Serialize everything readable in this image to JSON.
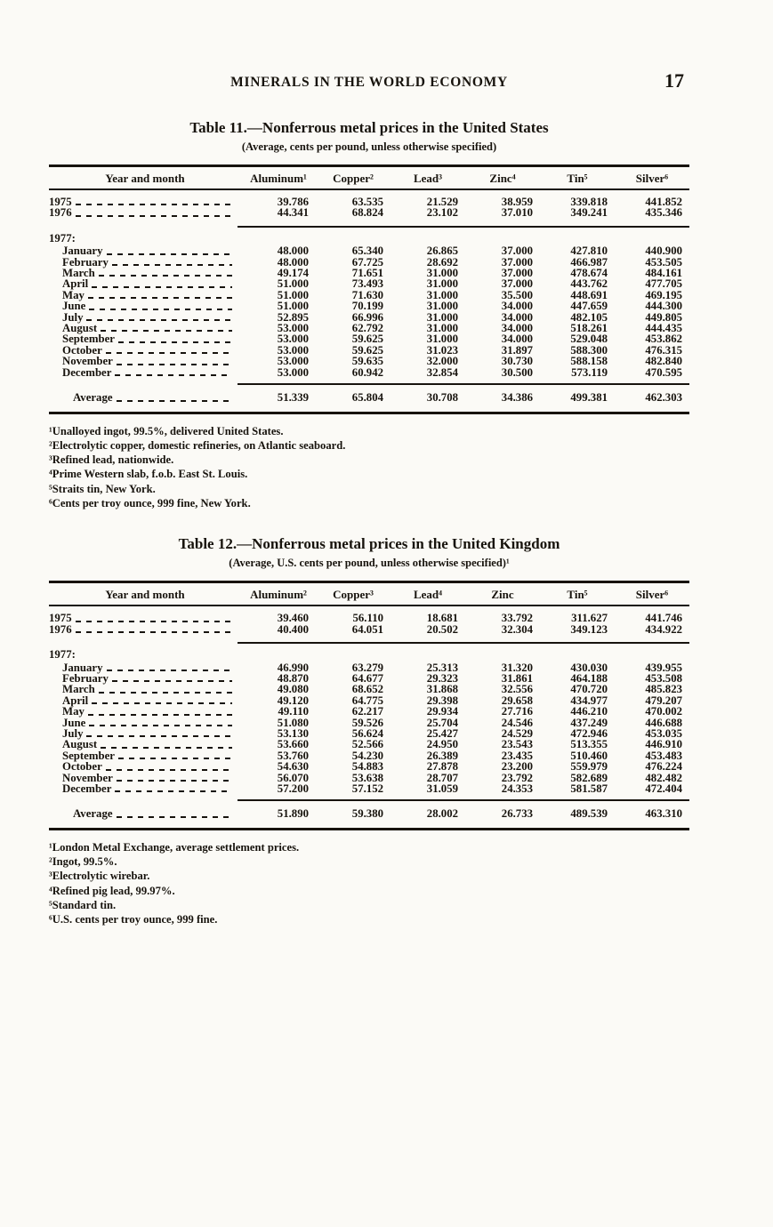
{
  "page": {
    "header_title": "MINERALS IN THE WORLD ECONOMY",
    "page_number": "17"
  },
  "tables": [
    {
      "title": "Table 11.—Nonferrous metal prices in the United States",
      "subtitle": "(Average, cents per pound, unless otherwise specified)",
      "columns": [
        "Year and month",
        "Aluminum¹",
        "Copper²",
        "Lead³",
        "Zinc⁴",
        "Tin⁵",
        "Silver⁶"
      ],
      "year_rows": [
        {
          "label": "1975",
          "values": [
            "39.786",
            "63.535",
            "21.529",
            "38.959",
            "339.818",
            "441.852"
          ]
        },
        {
          "label": "1976",
          "values": [
            "44.341",
            "68.824",
            "23.102",
            "37.010",
            "349.241",
            "435.346"
          ]
        }
      ],
      "section_label": "1977:",
      "month_rows": [
        {
          "label": "January",
          "values": [
            "48.000",
            "65.340",
            "26.865",
            "37.000",
            "427.810",
            "440.900"
          ]
        },
        {
          "label": "February",
          "values": [
            "48.000",
            "67.725",
            "28.692",
            "37.000",
            "466.987",
            "453.505"
          ]
        },
        {
          "label": "March",
          "values": [
            "49.174",
            "71.651",
            "31.000",
            "37.000",
            "478.674",
            "484.161"
          ]
        },
        {
          "label": "April",
          "values": [
            "51.000",
            "73.493",
            "31.000",
            "37.000",
            "443.762",
            "477.705"
          ]
        },
        {
          "label": "May",
          "values": [
            "51.000",
            "71.630",
            "31.000",
            "35.500",
            "448.691",
            "469.195"
          ]
        },
        {
          "label": "June",
          "values": [
            "51.000",
            "70.199",
            "31.000",
            "34.000",
            "447.659",
            "444.300"
          ]
        },
        {
          "label": "July",
          "values": [
            "52.895",
            "66.996",
            "31.000",
            "34.000",
            "482.105",
            "449.805"
          ]
        },
        {
          "label": "August",
          "values": [
            "53.000",
            "62.792",
            "31.000",
            "34.000",
            "518.261",
            "444.435"
          ]
        },
        {
          "label": "September",
          "values": [
            "53.000",
            "59.625",
            "31.000",
            "34.000",
            "529.048",
            "453.862"
          ]
        },
        {
          "label": "October",
          "values": [
            "53.000",
            "59.625",
            "31.023",
            "31.897",
            "588.300",
            "476.315"
          ]
        },
        {
          "label": "November",
          "values": [
            "53.000",
            "59.635",
            "32.000",
            "30.730",
            "588.158",
            "482.840"
          ]
        },
        {
          "label": "December",
          "values": [
            "53.000",
            "60.942",
            "32.854",
            "30.500",
            "573.119",
            "470.595"
          ]
        }
      ],
      "average_label": "Average",
      "average_values": [
        "51.339",
        "65.804",
        "30.708",
        "34.386",
        "499.381",
        "462.303"
      ],
      "footnotes": [
        "¹Unalloyed ingot, 99.5%, delivered United States.",
        "²Electrolytic copper, domestic refineries, on Atlantic seaboard.",
        "³Refined lead, nationwide.",
        "⁴Prime Western slab, f.o.b. East St. Louis.",
        "⁵Straits tin, New York.",
        "⁶Cents per troy ounce, 999 fine, New York."
      ]
    },
    {
      "title": "Table 12.—Nonferrous metal prices in the United Kingdom",
      "subtitle": "(Average, U.S. cents per pound, unless otherwise specified)¹",
      "columns": [
        "Year and month",
        "Aluminum²",
        "Copper³",
        "Lead⁴",
        "Zinc",
        "Tin⁵",
        "Silver⁶"
      ],
      "year_rows": [
        {
          "label": "1975",
          "values": [
            "39.460",
            "56.110",
            "18.681",
            "33.792",
            "311.627",
            "441.746"
          ]
        },
        {
          "label": "1976",
          "values": [
            "40.400",
            "64.051",
            "20.502",
            "32.304",
            "349.123",
            "434.922"
          ]
        }
      ],
      "section_label": "1977:",
      "month_rows": [
        {
          "label": "January",
          "values": [
            "46.990",
            "63.279",
            "25.313",
            "31.320",
            "430.030",
            "439.955"
          ]
        },
        {
          "label": "February",
          "values": [
            "48.870",
            "64.677",
            "29.323",
            "31.861",
            "464.188",
            "453.508"
          ]
        },
        {
          "label": "March",
          "values": [
            "49.080",
            "68.652",
            "31.868",
            "32.556",
            "470.720",
            "485.823"
          ]
        },
        {
          "label": "April",
          "values": [
            "49.120",
            "64.775",
            "29.398",
            "29.658",
            "434.977",
            "479.207"
          ]
        },
        {
          "label": "May",
          "values": [
            "49.110",
            "62.217",
            "29.934",
            "27.716",
            "446.210",
            "470.002"
          ]
        },
        {
          "label": "June",
          "values": [
            "51.080",
            "59.526",
            "25.704",
            "24.546",
            "437.249",
            "446.688"
          ]
        },
        {
          "label": "July",
          "values": [
            "53.130",
            "56.624",
            "25.427",
            "24.529",
            "472.946",
            "453.035"
          ]
        },
        {
          "label": "August",
          "values": [
            "53.660",
            "52.566",
            "24.950",
            "23.543",
            "513.355",
            "446.910"
          ]
        },
        {
          "label": "September",
          "values": [
            "53.760",
            "54.230",
            "26.389",
            "23.435",
            "510.460",
            "453.483"
          ]
        },
        {
          "label": "October",
          "values": [
            "54.630",
            "54.883",
            "27.878",
            "23.200",
            "559.979",
            "476.224"
          ]
        },
        {
          "label": "November",
          "values": [
            "56.070",
            "53.638",
            "28.707",
            "23.792",
            "582.689",
            "482.482"
          ]
        },
        {
          "label": "December",
          "values": [
            "57.200",
            "57.152",
            "31.059",
            "24.353",
            "581.587",
            "472.404"
          ]
        }
      ],
      "average_label": "Average",
      "average_values": [
        "51.890",
        "59.380",
        "28.002",
        "26.733",
        "489.539",
        "463.310"
      ],
      "footnotes": [
        "¹London Metal Exchange, average settlement prices.",
        "²Ingot, 99.5%.",
        "³Electrolytic wirebar.",
        "⁴Refined pig lead, 99.97%.",
        "⁵Standard tin.",
        "⁶U.S. cents per troy ounce, 999 fine."
      ]
    }
  ]
}
